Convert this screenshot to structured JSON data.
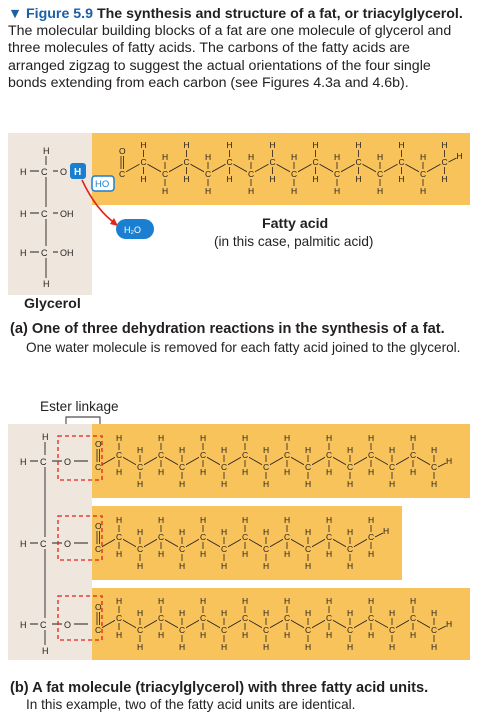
{
  "caption": {
    "figure_label": "▼ Figure 5.9",
    "title": "The synthesis and structure of a fat, or triacylglycerol.",
    "body": "The molecular building blocks of a fat are one molecule of glycerol and three molecules of fatty acids. The carbons of the fatty acids are arranged zigzag to suggest the actual orientations of the four single bonds extending from each carbon (see Figures 4.3a and 4.6b)."
  },
  "diagram_a": {
    "glycerol_label": "Glycerol",
    "fatty_acid_label": "Fatty acid",
    "fatty_acid_note": "(in this case, palmitic acid)",
    "water_label": "H₂O",
    "oh_label": "H",
    "ho_label": "HO"
  },
  "panel_a": {
    "heading": "(a) One of three dehydration reactions in the synthesis of a fat.",
    "text": "One water molecule is removed for each fatty acid joined to the glycerol."
  },
  "diagram_b": {
    "ester_label": "Ester linkage"
  },
  "panel_b": {
    "heading": "(b) A fat molecule (triacylglycerol) with three fatty acid units.",
    "text": "In this example, two of the fatty acid units are identical."
  },
  "colors": {
    "chain_band": "#f8c35a",
    "glycerol_band": "#efe7dd",
    "accent_blue": "#1a7fd0",
    "arrow_red": "#e2231a",
    "heading_blue": "#1a5fa8"
  }
}
